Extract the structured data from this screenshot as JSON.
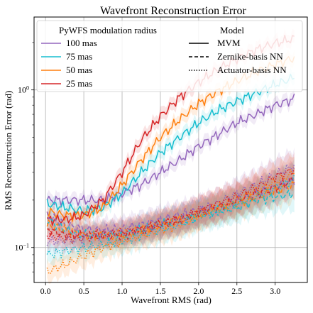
{
  "chart_data": {
    "type": "line",
    "title": "Wavefront Reconstruction Error",
    "xlabel": "Wavefront RMS (rad)",
    "ylabel": "RMS Reconstruction Error (rad)",
    "xlim": [
      -0.15,
      3.42
    ],
    "ylim": [
      0.06,
      2.9
    ],
    "yscale": "log",
    "grid": true,
    "xticks": [
      {
        "value": 0.0,
        "label": "0.0"
      },
      {
        "value": 0.5,
        "label": "0.5"
      },
      {
        "value": 1.0,
        "label": "1.0"
      },
      {
        "value": 1.5,
        "label": "1.5"
      },
      {
        "value": 2.0,
        "label": "2.0"
      },
      {
        "value": 2.5,
        "label": "2.5"
      },
      {
        "value": 3.0,
        "label": "3.0"
      }
    ],
    "yticks": [
      {
        "value": 0.1,
        "base": "10",
        "exp": "−1"
      },
      {
        "value": 1.0,
        "base": "10",
        "exp": "0"
      }
    ],
    "legend": {
      "placement": "top",
      "left_title": "PyWFS modulation radius",
      "right_title": "Model",
      "radii": [
        {
          "label": "100 mas",
          "color": "#9467bd"
        },
        {
          "label": "75 mas",
          "color": "#17becf"
        },
        {
          "label": "50 mas",
          "color": "#ff7f0e"
        },
        {
          "label": "25 mas",
          "color": "#d62728"
        }
      ],
      "models": [
        {
          "label": "MVM",
          "dash": "solid"
        },
        {
          "label": "Zernike-basis NN",
          "dash": "dashed"
        },
        {
          "label": "Actuator-basis NN",
          "dash": "dotted"
        }
      ]
    },
    "x": [
      0.02,
      0.25,
      0.5,
      0.75,
      1.0,
      1.25,
      1.5,
      1.75,
      2.0,
      2.25,
      2.5,
      2.75,
      3.0,
      3.25
    ],
    "series": [
      {
        "radius": "100 mas",
        "model": "MVM",
        "color": "#9467bd",
        "dash": "solid",
        "values": [
          0.2,
          0.2,
          0.2,
          0.2,
          0.22,
          0.25,
          0.3,
          0.36,
          0.44,
          0.52,
          0.62,
          0.7,
          0.8,
          0.88
        ]
      },
      {
        "radius": "75 mas",
        "model": "MVM",
        "color": "#17becf",
        "dash": "solid",
        "values": [
          0.19,
          0.18,
          0.17,
          0.18,
          0.22,
          0.3,
          0.4,
          0.5,
          0.62,
          0.74,
          0.85,
          0.96,
          1.08,
          1.2
        ]
      },
      {
        "radius": "50 mas",
        "model": "MVM",
        "color": "#ff7f0e",
        "dash": "solid",
        "values": [
          0.17,
          0.16,
          0.16,
          0.18,
          0.25,
          0.36,
          0.5,
          0.65,
          0.82,
          0.98,
          1.14,
          1.3,
          1.45,
          1.6
        ]
      },
      {
        "radius": "25 mas",
        "model": "MVM",
        "color": "#d62728",
        "dash": "solid",
        "values": [
          0.15,
          0.15,
          0.16,
          0.2,
          0.3,
          0.48,
          0.68,
          0.9,
          1.12,
          1.35,
          1.58,
          1.8,
          1.98,
          2.12
        ]
      },
      {
        "radius": "100 mas",
        "model": "Zernike-basis NN",
        "color": "#9467bd",
        "dash": "dashed",
        "values": [
          0.16,
          0.14,
          0.13,
          0.13,
          0.13,
          0.14,
          0.15,
          0.16,
          0.17,
          0.18,
          0.2,
          0.22,
          0.24,
          0.27
        ]
      },
      {
        "radius": "75 mas",
        "model": "Zernike-basis NN",
        "color": "#17becf",
        "dash": "dashed",
        "values": [
          0.15,
          0.13,
          0.12,
          0.12,
          0.12,
          0.13,
          0.14,
          0.15,
          0.16,
          0.17,
          0.18,
          0.2,
          0.21,
          0.22
        ]
      },
      {
        "radius": "50 mas",
        "model": "Zernike-basis NN",
        "color": "#ff7f0e",
        "dash": "dashed",
        "values": [
          0.14,
          0.13,
          0.12,
          0.12,
          0.12,
          0.13,
          0.14,
          0.15,
          0.16,
          0.18,
          0.19,
          0.21,
          0.23,
          0.25
        ]
      },
      {
        "radius": "25 mas",
        "model": "Zernike-basis NN",
        "color": "#d62728",
        "dash": "dashed",
        "values": [
          0.13,
          0.12,
          0.12,
          0.12,
          0.12,
          0.13,
          0.14,
          0.15,
          0.17,
          0.18,
          0.2,
          0.22,
          0.24,
          0.27
        ]
      },
      {
        "radius": "100 mas",
        "model": "Actuator-basis NN",
        "color": "#9467bd",
        "dash": "dotted",
        "values": [
          0.11,
          0.11,
          0.115,
          0.12,
          0.125,
          0.13,
          0.14,
          0.15,
          0.17,
          0.19,
          0.22,
          0.25,
          0.29,
          0.33
        ]
      },
      {
        "radius": "75 mas",
        "model": "Actuator-basis NN",
        "color": "#17becf",
        "dash": "dotted",
        "values": [
          0.09,
          0.095,
          0.1,
          0.105,
          0.11,
          0.12,
          0.13,
          0.14,
          0.16,
          0.17,
          0.19,
          0.21,
          0.24,
          0.27
        ]
      },
      {
        "radius": "50 mas",
        "model": "Actuator-basis NN",
        "color": "#ff7f0e",
        "dash": "dotted",
        "values": [
          0.07,
          0.078,
          0.088,
          0.1,
          0.11,
          0.12,
          0.13,
          0.14,
          0.16,
          0.18,
          0.2,
          0.23,
          0.26,
          0.3
        ]
      },
      {
        "radius": "25 mas",
        "model": "Actuator-basis NN",
        "color": "#d62728",
        "dash": "dotted",
        "values": [
          0.12,
          0.115,
          0.115,
          0.12,
          0.125,
          0.13,
          0.14,
          0.15,
          0.17,
          0.19,
          0.21,
          0.24,
          0.28,
          0.31
        ]
      }
    ]
  }
}
